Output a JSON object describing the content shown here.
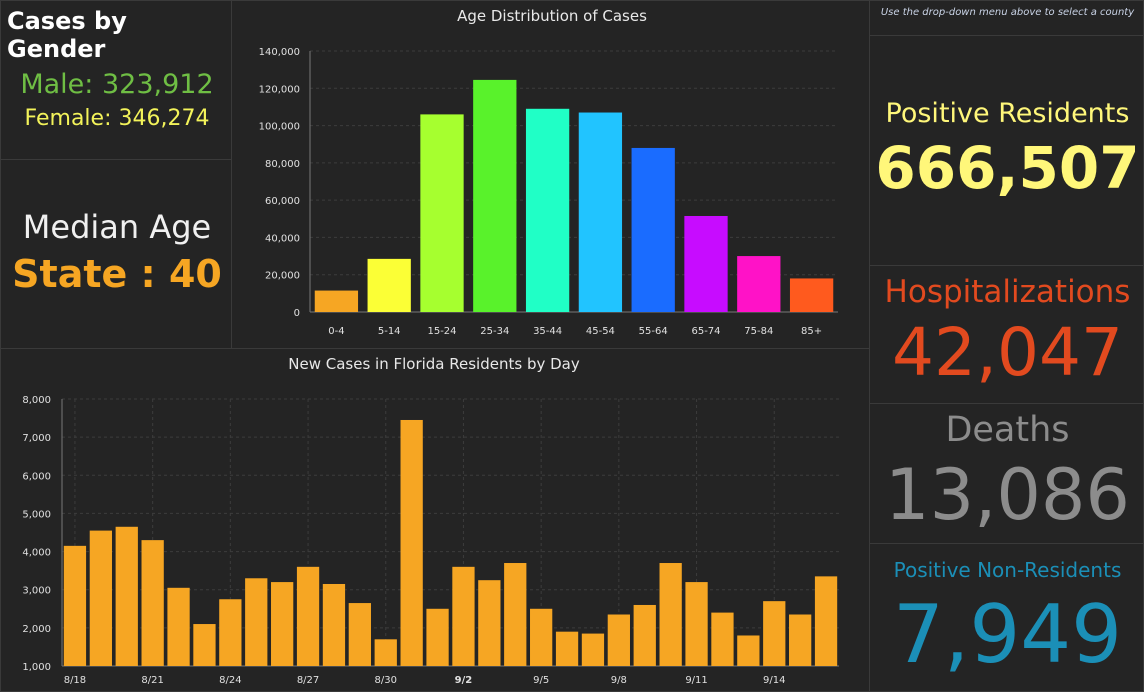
{
  "gender": {
    "title": "Cases by Gender",
    "male": "Male: 323,912",
    "female": "Female: 346,274"
  },
  "median": {
    "label": "Median Age",
    "value": "State : 40"
  },
  "stats": {
    "hint": "Use the drop-down menu above to select a county",
    "positive_label": "Positive Residents",
    "positive_value": "666,507",
    "hosp_label": "Hospitalizations",
    "hosp_value": "42,047",
    "deaths_label": "Deaths",
    "deaths_value": "13,086",
    "nonres_label": "Positive Non-Residents",
    "nonres_value": "7,949"
  },
  "colors": {
    "male": "#6fbe44",
    "female": "#f3f35a",
    "median_value": "#f6a623",
    "positive": "#fff77a",
    "hosp": "#e24a1f",
    "deaths": "#8c8c8c",
    "nonres": "#1b8fb7",
    "bar": "#f6a623"
  },
  "chart_data": [
    {
      "type": "bar",
      "title": "Age Distribution of Cases",
      "categories": [
        "0-4",
        "5-14",
        "15-24",
        "25-34",
        "35-44",
        "45-54",
        "55-64",
        "65-74",
        "75-84",
        "85+"
      ],
      "values": [
        11500,
        28500,
        106000,
        124500,
        109000,
        107000,
        88000,
        51500,
        30000,
        18000
      ],
      "colors": [
        "#f6a623",
        "#fbff36",
        "#a6ff2f",
        "#59f22b",
        "#20ffc6",
        "#21c4ff",
        "#1a6cff",
        "#c70cff",
        "#ff12c7",
        "#ff5a1e"
      ],
      "ylim": [
        0,
        140000
      ],
      "yticks": [
        "0",
        "20,000",
        "40,000",
        "60,000",
        "80,000",
        "100,000",
        "120,000",
        "140,000"
      ],
      "grid": true
    },
    {
      "type": "bar",
      "title": "New Cases in Florida Residents by Day",
      "x_tick_labels": [
        "8/18",
        "8/21",
        "8/24",
        "8/27",
        "8/30",
        "9/2",
        "9/5",
        "9/8",
        "9/11",
        "9/14"
      ],
      "x": [
        "8/18",
        "8/19",
        "8/20",
        "8/21",
        "8/22",
        "8/23",
        "8/24",
        "8/25",
        "8/26",
        "8/27",
        "8/28",
        "8/29",
        "8/30",
        "8/31",
        "9/1",
        "9/2",
        "9/3",
        "9/4",
        "9/5",
        "9/6",
        "9/7",
        "9/8",
        "9/9",
        "9/10",
        "9/11",
        "9/12",
        "9/13",
        "9/14",
        "9/15",
        "9/16"
      ],
      "values": [
        4150,
        4550,
        4650,
        4300,
        3050,
        2100,
        2750,
        3300,
        3200,
        3600,
        3150,
        2650,
        1700,
        7450,
        2500,
        3600,
        3250,
        3700,
        2500,
        1900,
        1850,
        2350,
        2600,
        3700,
        3200,
        2400,
        1800,
        2700,
        2350,
        3350
      ],
      "ylim": [
        1000,
        8000
      ],
      "yticks": [
        "1,000",
        "2,000",
        "3,000",
        "4,000",
        "5,000",
        "6,000",
        "7,000",
        "8,000"
      ],
      "grid": true
    }
  ]
}
